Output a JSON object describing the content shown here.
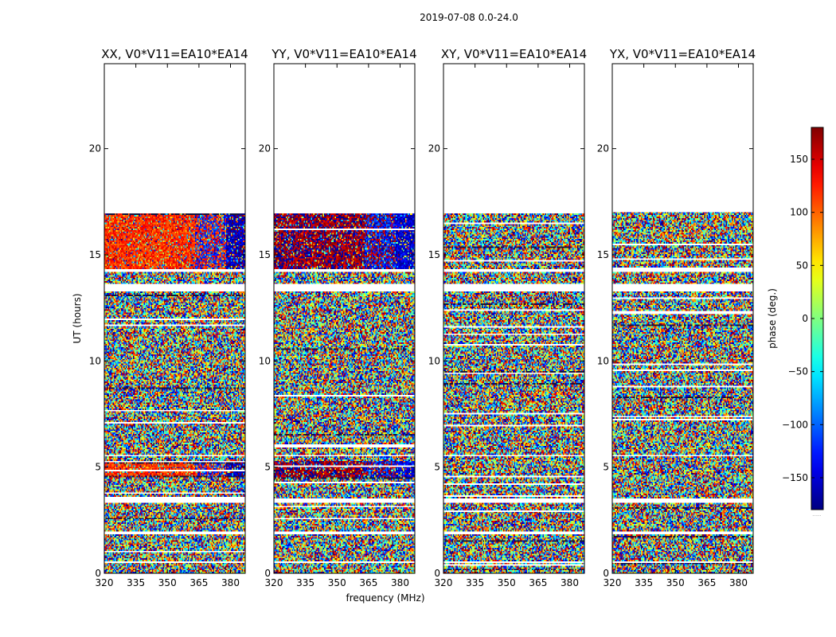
{
  "figure": {
    "suptitle": "2019-07-08 0.0-24.0",
    "xlabel": "frequency (MHz)",
    "ylabel": "UT (hours)",
    "colorbar_label": "phase (deg.)",
    "colorbar_extra": "......"
  },
  "chart_data": {
    "type": "heatmap",
    "colormap": "jet",
    "panels": [
      {
        "title": "XX, V0*V11=EA10*EA14",
        "polarization": "XX",
        "coherent_phase_deg": 120,
        "coherent_phase_high_freq_deg": -160
      },
      {
        "title": "YY, V0*V11=EA10*EA14",
        "polarization": "YY",
        "coherent_phase_deg": 170,
        "coherent_phase_high_freq_deg": -150
      },
      {
        "title": "XY, V0*V11=EA10*EA14",
        "polarization": "XY",
        "coherent_phase_deg": null,
        "coherent_phase_high_freq_deg": null
      },
      {
        "title": "YX, V0*V11=EA10*EA14",
        "polarization": "YX",
        "coherent_phase_deg": null,
        "coherent_phase_high_freq_deg": null
      }
    ],
    "x": {
      "range": [
        320,
        387
      ],
      "ticks": [
        320,
        335,
        350,
        365,
        380
      ],
      "tick_labels": [
        "320",
        "335",
        "350",
        "365",
        "380"
      ]
    },
    "y": {
      "range": [
        0,
        24
      ],
      "ticks": [
        0,
        5,
        10,
        15,
        20
      ],
      "tick_labels": [
        "0",
        "5",
        "10",
        "15",
        "20"
      ]
    },
    "colorbar": {
      "range": [
        -180,
        180
      ],
      "ticks": [
        150,
        100,
        50,
        0,
        -50,
        -100,
        -150
      ],
      "tick_labels": [
        "150",
        "100",
        "50",
        "0",
        "−50",
        "−100",
        "−150"
      ]
    },
    "data_end_ut": 17.0,
    "coherent_ut_ranges": [
      [
        14.3,
        17.0
      ],
      [
        4.5,
        5.3
      ]
    ],
    "gaps_ut": [
      [
        0.5,
        0.6
      ],
      [
        1.8,
        2.0
      ],
      [
        3.3,
        3.5
      ],
      [
        5.5,
        5.6
      ],
      [
        13.3,
        13.6
      ],
      [
        14.2,
        14.3
      ]
    ],
    "coherent_freq_break_mhz": 363,
    "high_freq_edge_mhz": 382
  }
}
